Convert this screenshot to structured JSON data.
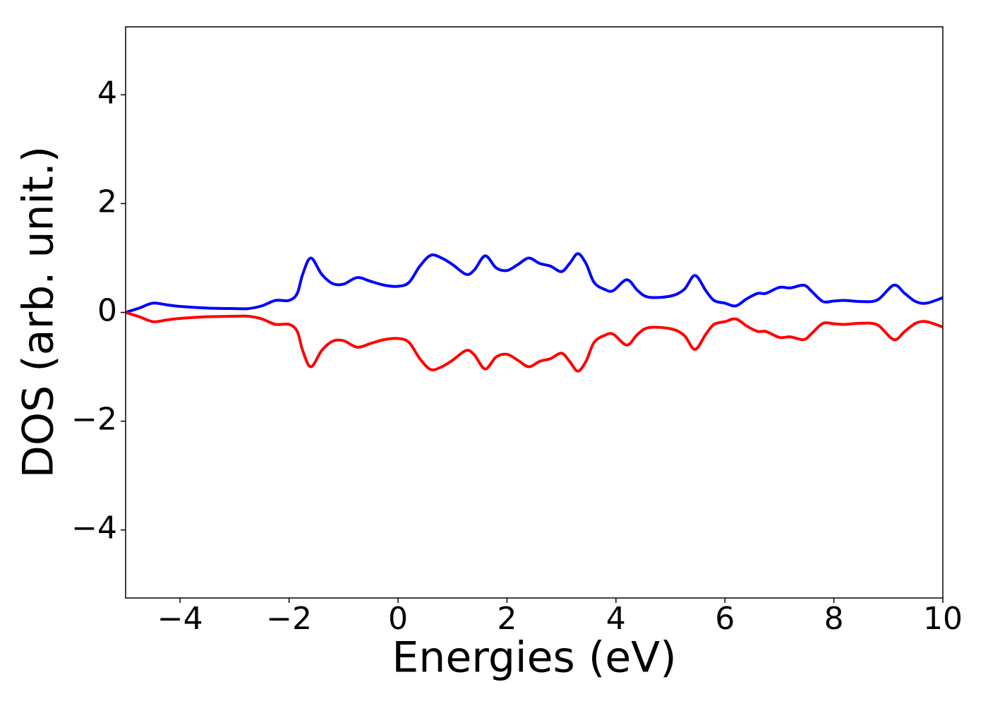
{
  "chart_data": {
    "type": "line",
    "xlabel": "Energies (eV)",
    "ylabel": "DOS (arb. unit.)",
    "x": [
      -5,
      -4.75,
      -4.5,
      -4.25,
      -4,
      -3.5,
      -3,
      -2.75,
      -2.5,
      -2.25,
      -2,
      -1.85,
      -1.75,
      -1.6,
      -1.4,
      -1.2,
      -1.0,
      -0.75,
      -0.5,
      -0.25,
      0,
      0.2,
      0.4,
      0.6,
      0.8,
      1.0,
      1.25,
      1.4,
      1.6,
      1.8,
      2.0,
      2.2,
      2.4,
      2.6,
      2.8,
      3.0,
      3.15,
      3.3,
      3.45,
      3.6,
      3.8,
      3.95,
      4.2,
      4.4,
      4.6,
      5.0,
      5.25,
      5.45,
      5.65,
      5.8,
      6.0,
      6.2,
      6.4,
      6.6,
      6.75,
      7.0,
      7.2,
      7.45,
      7.6,
      7.8,
      8.0,
      8.2,
      8.5,
      8.8,
      9.1,
      9.3,
      9.5,
      9.7,
      10
    ],
    "series": [
      {
        "color": "#0000ff",
        "values": [
          0.0,
          0.08,
          0.17,
          0.14,
          0.11,
          0.08,
          0.07,
          0.07,
          0.12,
          0.22,
          0.22,
          0.35,
          0.7,
          1.0,
          0.7,
          0.53,
          0.52,
          0.64,
          0.57,
          0.5,
          0.48,
          0.55,
          0.85,
          1.05,
          1.0,
          0.88,
          0.7,
          0.78,
          1.04,
          0.82,
          0.77,
          0.88,
          1.0,
          0.9,
          0.85,
          0.75,
          0.9,
          1.08,
          0.9,
          0.55,
          0.42,
          0.4,
          0.6,
          0.4,
          0.28,
          0.3,
          0.42,
          0.68,
          0.4,
          0.22,
          0.17,
          0.12,
          0.25,
          0.35,
          0.35,
          0.46,
          0.45,
          0.5,
          0.38,
          0.2,
          0.21,
          0.22,
          0.2,
          0.23,
          0.5,
          0.35,
          0.2,
          0.17,
          0.27
        ]
      },
      {
        "color": "#ff0000",
        "values": [
          0.0,
          -0.08,
          -0.17,
          -0.14,
          -0.11,
          -0.08,
          -0.07,
          -0.07,
          -0.12,
          -0.22,
          -0.22,
          -0.35,
          -0.7,
          -1.0,
          -0.7,
          -0.53,
          -0.52,
          -0.64,
          -0.57,
          -0.5,
          -0.48,
          -0.55,
          -0.85,
          -1.05,
          -1.0,
          -0.88,
          -0.7,
          -0.78,
          -1.04,
          -0.82,
          -0.77,
          -0.88,
          -1.0,
          -0.9,
          -0.85,
          -0.75,
          -0.9,
          -1.08,
          -0.9,
          -0.55,
          -0.42,
          -0.4,
          -0.6,
          -0.4,
          -0.28,
          -0.3,
          -0.42,
          -0.68,
          -0.4,
          -0.22,
          -0.17,
          -0.12,
          -0.25,
          -0.35,
          -0.35,
          -0.46,
          -0.45,
          -0.5,
          -0.38,
          -0.2,
          -0.21,
          -0.22,
          -0.2,
          -0.23,
          -0.5,
          -0.35,
          -0.2,
          -0.17,
          -0.27
        ]
      }
    ],
    "xlim": [
      -5,
      10
    ],
    "ylim": [
      -5.25,
      5.25
    ],
    "xticks": [
      {
        "value": -4,
        "label": "−4"
      },
      {
        "value": -2,
        "label": "−2"
      },
      0,
      2,
      4,
      6,
      8,
      10
    ],
    "yticks": [
      {
        "value": -4,
        "label": "−4"
      },
      {
        "value": -2,
        "label": "−2"
      },
      0,
      2,
      4
    ],
    "grid": false
  }
}
